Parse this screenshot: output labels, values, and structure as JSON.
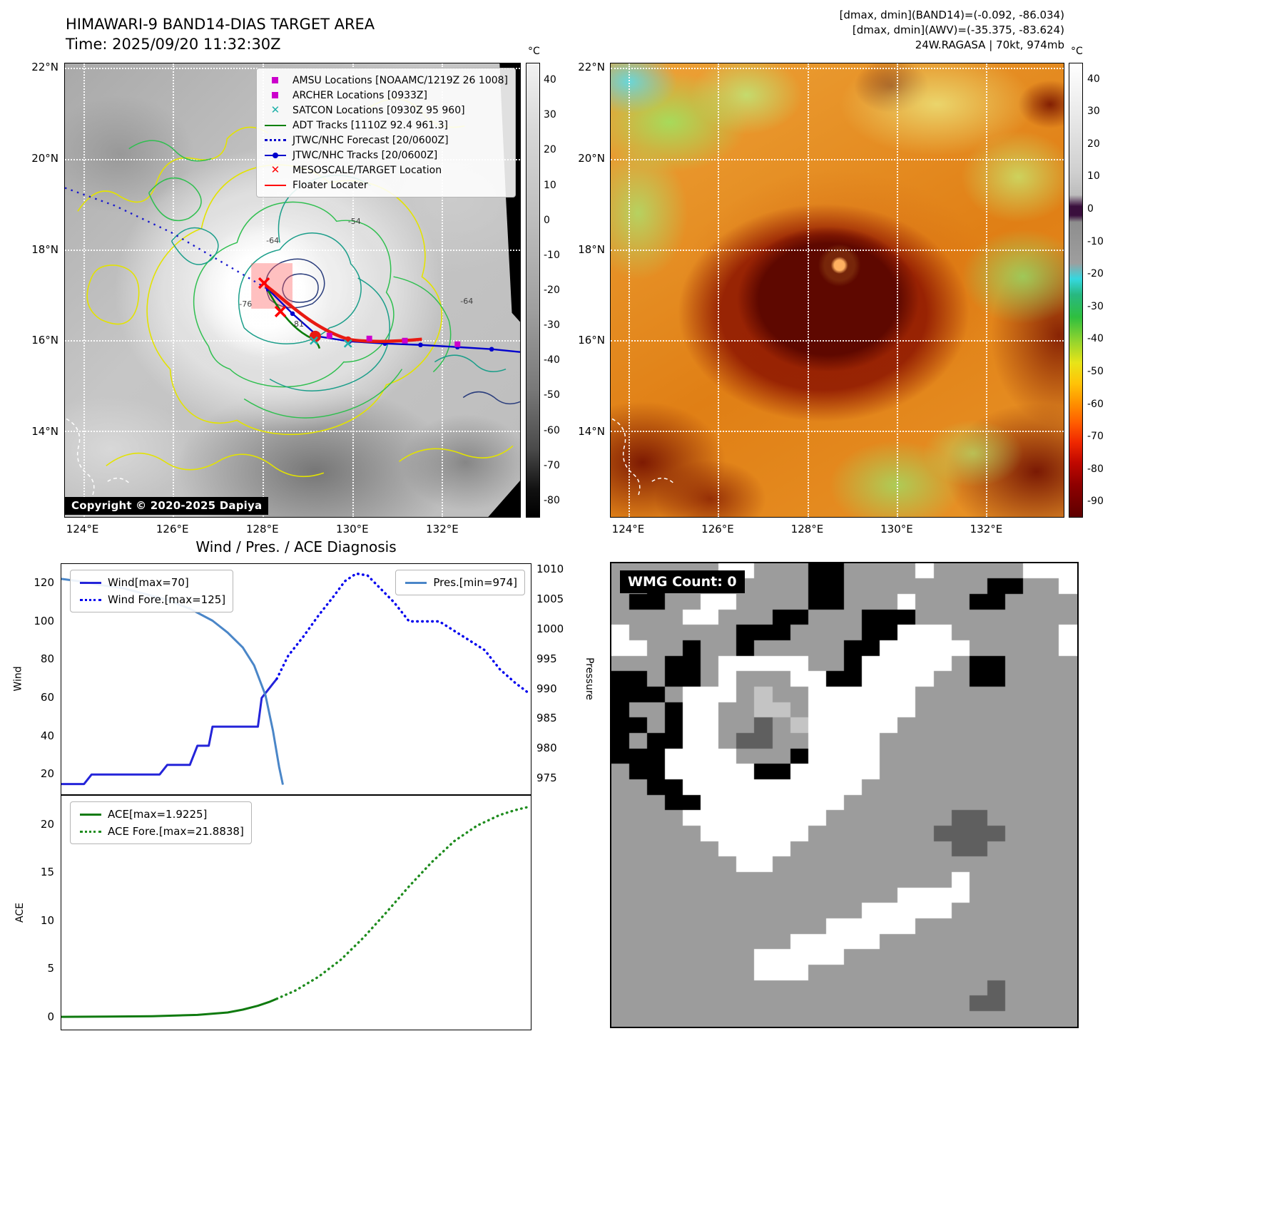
{
  "panel_tl": {
    "title_line1": "HIMAWARI-9 BAND14-DIAS TARGET AREA",
    "title_line2": "Time: 2025/09/20 11:32:30Z",
    "copyright": "Copyright © 2020-2025 Dapiya",
    "colorbar_unit": "°C",
    "colorbar_ticks": [
      40,
      30,
      20,
      10,
      0,
      -10,
      -20,
      -30,
      -40,
      -50,
      -60,
      -70,
      -80
    ],
    "lat_ticks": [
      "22°N",
      "20°N",
      "18°N",
      "16°N",
      "14°N"
    ],
    "lon_ticks": [
      "124°E",
      "126°E",
      "128°E",
      "130°E",
      "132°E"
    ],
    "contour_labels": [
      "-64",
      "-76",
      "-81",
      "-54",
      "-64"
    ],
    "legend": [
      {
        "label": "AMSU Locations [NOAAMC/1219Z 26 1008]",
        "color": "#cc00cc",
        "marker": "square"
      },
      {
        "label": "ARCHER Locations [0933Z]",
        "color": "#cc00cc",
        "marker": "square"
      },
      {
        "label": "SATCON Locations [0930Z 95 960]",
        "color": "#20b2aa",
        "marker": "x"
      },
      {
        "label": "ADT Tracks [1110Z 92.4 961.3]",
        "color": "#008000",
        "marker": "line"
      },
      {
        "label": "JTWC/NHC Forecast [20/0600Z]",
        "color": "#0000cd",
        "marker": "dotted"
      },
      {
        "label": "JTWC/NHC Tracks [20/0600Z]",
        "color": "#0000cd",
        "marker": "linedot"
      },
      {
        "label": "MESOSCALE/TARGET Location",
        "color": "#ff0000",
        "marker": "x"
      },
      {
        "label": "Floater Locater",
        "color": "#ff0000",
        "marker": "line"
      }
    ]
  },
  "panel_tr": {
    "header_line1": "[dmax, dmin](BAND14)=(-0.092, -86.034)",
    "header_line2": "[dmax, dmin](AWV)=(-35.375, -83.624)",
    "header_line3": "24W.RAGASA | 70kt, 974mb",
    "colorbar_unit": "°C",
    "colorbar_ticks": [
      40,
      30,
      20,
      10,
      0,
      -10,
      -20,
      -30,
      -40,
      -50,
      -60,
      -70,
      -80,
      -90
    ],
    "lat_ticks": [
      "22°N",
      "20°N",
      "18°N",
      "16°N",
      "14°N"
    ],
    "lon_ticks": [
      "124°E",
      "126°E",
      "128°E",
      "130°E",
      "132°E"
    ]
  },
  "charts_title": "Wind / Pres. / ACE Diagnosis",
  "chart_data": [
    {
      "type": "line",
      "title": "Wind / Pres. / ACE Diagnosis",
      "xlim": [
        0,
        62
      ],
      "ylabel_left": "Wind",
      "ylabel_right": "Pressure",
      "ylim_left": [
        10,
        130
      ],
      "ylim_right": [
        972.5,
        1011
      ],
      "yticks_left": [
        20,
        40,
        60,
        80,
        100,
        120
      ],
      "yticks_right": [
        975,
        980,
        985,
        990,
        995,
        1000,
        1005,
        1010
      ],
      "legend_position": "upper-left-and-upper-right",
      "series": [
        {
          "name": "Wind[max=70]",
          "axis": "left",
          "style": "solid",
          "color": "#2424d9",
          "x": [
            0,
            3,
            4,
            13,
            14,
            17,
            18,
            19.5,
            20,
            26,
            26.5,
            27.5,
            28.5
          ],
          "values": [
            15,
            15,
            20,
            20,
            25,
            25,
            35,
            35,
            45,
            45,
            60,
            65,
            70
          ]
        },
        {
          "name": "Wind Fore.[max=125]",
          "axis": "left",
          "style": "dotted",
          "color": "#0000ee",
          "x": [
            28.5,
            30,
            32,
            34,
            36,
            37.5,
            39,
            40.5,
            42,
            44,
            46,
            48,
            50,
            52,
            54,
            56,
            58,
            60,
            62
          ],
          "values": [
            70,
            82,
            92,
            103,
            113,
            121,
            125,
            124,
            118,
            110,
            100,
            100,
            100,
            95,
            90,
            85,
            75,
            68,
            62
          ]
        },
        {
          "name": "Pres.[min=974]",
          "axis": "right",
          "style": "solid",
          "color": "#4a86c8",
          "x": [
            0,
            3,
            5,
            8,
            11,
            14,
            17,
            20,
            22,
            24,
            25.5,
            27,
            28,
            28.8,
            29.3
          ],
          "values": [
            1008.5,
            1008,
            1007.5,
            1007,
            1006,
            1005,
            1003.5,
            1001.5,
            999.5,
            997,
            994,
            989,
            983,
            977,
            974
          ]
        }
      ]
    },
    {
      "type": "line",
      "xlim": [
        0,
        62
      ],
      "ylabel_left": "ACE",
      "ylim_left": [
        -1.2,
        23
      ],
      "yticks_left": [
        0,
        5,
        10,
        15,
        20
      ],
      "legend_position": "upper-left",
      "series": [
        {
          "name": "ACE[max=1.9225]",
          "axis": "left",
          "style": "solid",
          "color": "#0f7a0f",
          "x": [
            0,
            6,
            12,
            18,
            22,
            24,
            26,
            27.5,
            28.5
          ],
          "values": [
            0.05,
            0.08,
            0.12,
            0.25,
            0.5,
            0.8,
            1.2,
            1.6,
            1.92
          ]
        },
        {
          "name": "ACE Fore.[max=21.8838]",
          "axis": "left",
          "style": "dotted",
          "color": "#1e8c1e",
          "x": [
            28.5,
            31,
            34,
            37,
            40,
            43,
            46,
            49,
            52,
            55,
            58,
            60,
            62
          ],
          "values": [
            1.92,
            2.8,
            4.2,
            6.0,
            8.3,
            10.9,
            13.6,
            16.1,
            18.3,
            19.9,
            21.0,
            21.5,
            21.88
          ]
        }
      ]
    }
  ],
  "panel_br": {
    "label": "WMG Count: 0",
    "palette": {
      "W": "#ffffff",
      "L": "#c4c4c4",
      "G": "#9c9c9c",
      "D": "#5f5f5f",
      "B": "#000000"
    },
    "grid": [
      "GGGGGGWWGGGBBGGGGWGGGGGWWW",
      "GGBGGGGGGGGBBGGGGGGGGBBGGW",
      "GBBGGWWGGGGBBGGGWGGGBBGGGG",
      "GGGGWWGGGBBGGGBBBGGGGGGGGG",
      "WGGGGGGBBBGGGGBBWWWGGGGGGW",
      "WWGGBGGBGGGGGBBWWWWWGGGGGW",
      "GGGBBGWWWWWGGBWWWWWGBBGGGG",
      "BBGBBGWGGGWWBBWWWWGGBBGGGG",
      "BBBGWWWGLGGWWWWWWGGGGGGGGG",
      "BGGBWWGGLLGWWWWWWGGGGGGGGG",
      "BBGBWWGGDGLWWWWWGGGGGGGGGG",
      "BGBBWWGDDGGWWWWGGGGGGGGGGG",
      "BBBWWWWGGGBWWWWGGGGGGGGGGG",
      "GBBWWWWWBBWWWWWGGGGGGGGGGG",
      "GGBBWWWWWWWWWWGGGGGGGGGGGG",
      "GGGBBWWWWWWWWGGGGGGGGGGGGG",
      "GGGGWWWWWWWWGGGGGGGDDGGGGG",
      "GGGGGWWWWWWGGGGGGGDDDDGGGG",
      "GGGGGGWWWWGGGGGGGGGDDGGGGG",
      "GGGGGGGWWGGGGGGGGGGGGGGGGG",
      "GGGGGGGGGGGGGGGGGGGWGGGGGG",
      "GGGGGGGGGGGGGGGGWWWWGGGGGG",
      "GGGGGGGGGGGGGGWWWWWGGGGGGG",
      "GGGGGGGGGGGGWWWWWGGGGGGGGG",
      "GGGGGGGGGGWWWWWGGGGGGGGGGG",
      "GGGGGGGGWWWWWGGGGGGGGGGGGG",
      "GGGGGGGGWWWGGGGGGGGGGGGGGG",
      "GGGGGGGGGGGGGGGGGGGGGDGGGG",
      "GGGGGGGGGGGGGGGGGGGGDDGGGG",
      "GGGGGGGGGGGGGGGGGGGGGGGGGG"
    ]
  }
}
